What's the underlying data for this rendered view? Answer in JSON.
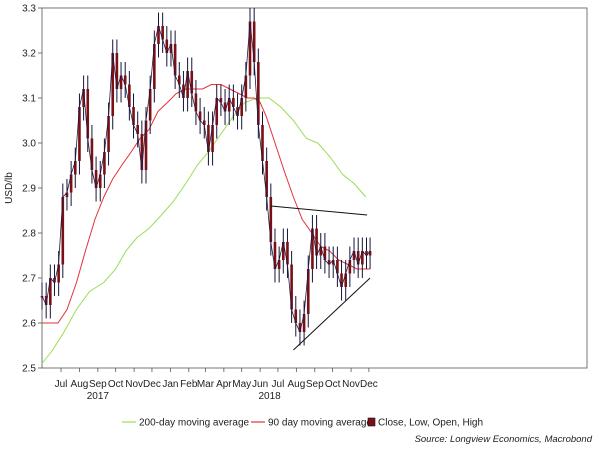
{
  "chart_data": {
    "type": "line",
    "ylabel": "USD/lb",
    "ylim": [
      2.5,
      3.3
    ],
    "yticks": [
      "2.5",
      "2.6",
      "2.7",
      "2.8",
      "2.9",
      "3.0",
      "3.1",
      "3.2",
      "3.3"
    ],
    "xlim": [
      "2016-06-13",
      "2018-12-17"
    ],
    "xticks": [
      {
        "label": "Jul",
        "date": "2016-07-15"
      },
      {
        "label": "Aug",
        "date": "2016-08-15"
      },
      {
        "label": "Sep",
        "date": "2016-09-15"
      },
      {
        "label": "Oct",
        "date": "2016-10-15"
      },
      {
        "label": "Nov",
        "date": "2016-11-15"
      },
      {
        "label": "Dec",
        "date": "2016-12-15"
      },
      {
        "label": "Jan",
        "date": "2017-01-15"
      },
      {
        "label": "Feb",
        "date": "2017-02-15"
      },
      {
        "label": "Mar",
        "date": "2017-03-15"
      },
      {
        "label": "Apr",
        "date": "2017-04-15"
      },
      {
        "label": "May",
        "date": "2017-05-15"
      },
      {
        "label": "Jun",
        "date": "2017-06-15"
      },
      {
        "label": "Jul",
        "date": "2017-07-15"
      },
      {
        "label": "Aug",
        "date": "2017-08-15"
      },
      {
        "label": "Sep",
        "date": "2017-09-15"
      },
      {
        "label": "Oct",
        "date": "2017-10-15"
      },
      {
        "label": "Nov",
        "date": "2017-11-15"
      },
      {
        "label": "Dec",
        "date": "2017-12-15"
      }
    ],
    "year_labels": [
      {
        "label": "2017",
        "date": "2016-09-15"
      },
      {
        "label": "2018",
        "date": "2017-07-01"
      }
    ],
    "series": [
      {
        "name": "200-day moving average",
        "color": "#99dd55",
        "points": [
          [
            "2016-06-13",
            2.51
          ],
          [
            "2016-07-01",
            2.54
          ],
          [
            "2016-07-20",
            2.58
          ],
          [
            "2016-08-10",
            2.63
          ],
          [
            "2016-09-01",
            2.67
          ],
          [
            "2016-09-25",
            2.69
          ],
          [
            "2016-10-15",
            2.72
          ],
          [
            "2016-11-01",
            2.76
          ],
          [
            "2016-11-20",
            2.79
          ],
          [
            "2016-12-10",
            2.81
          ],
          [
            "2016-12-31",
            2.84
          ],
          [
            "2017-01-20",
            2.87
          ],
          [
            "2017-02-10",
            2.91
          ],
          [
            "2017-03-01",
            2.95
          ],
          [
            "2017-03-20",
            2.98
          ],
          [
            "2017-04-10",
            3.02
          ],
          [
            "2017-05-01",
            3.06
          ],
          [
            "2017-05-20",
            3.09
          ],
          [
            "2017-06-10",
            3.1
          ],
          [
            "2017-06-30",
            3.1
          ],
          [
            "2017-07-20",
            3.08
          ],
          [
            "2017-08-10",
            3.05
          ],
          [
            "2017-09-01",
            3.01
          ],
          [
            "2017-09-20",
            3.0
          ],
          [
            "2017-10-10",
            2.97
          ],
          [
            "2017-11-01",
            2.93
          ],
          [
            "2017-11-20",
            2.91
          ],
          [
            "2017-12-10",
            2.88
          ]
        ]
      },
      {
        "name": "90 day moving average",
        "color": "#e2323a",
        "points": [
          [
            "2016-06-13",
            2.6
          ],
          [
            "2016-06-25",
            2.6
          ],
          [
            "2016-07-10",
            2.6
          ],
          [
            "2016-07-25",
            2.63
          ],
          [
            "2016-08-10",
            2.69
          ],
          [
            "2016-08-25",
            2.76
          ],
          [
            "2016-09-10",
            2.83
          ],
          [
            "2016-09-25",
            2.88
          ],
          [
            "2016-10-10",
            2.92
          ],
          [
            "2016-10-25",
            2.95
          ],
          [
            "2016-11-10",
            2.98
          ],
          [
            "2016-11-25",
            3.01
          ],
          [
            "2016-12-10",
            3.03
          ],
          [
            "2016-12-25",
            3.07
          ],
          [
            "2017-01-10",
            3.09
          ],
          [
            "2017-01-25",
            3.11
          ],
          [
            "2017-02-10",
            3.12
          ],
          [
            "2017-02-25",
            3.12
          ],
          [
            "2017-03-10",
            3.12
          ],
          [
            "2017-03-25",
            3.13
          ],
          [
            "2017-04-10",
            3.13
          ],
          [
            "2017-04-25",
            3.12
          ],
          [
            "2017-05-10",
            3.11
          ],
          [
            "2017-05-25",
            3.1
          ],
          [
            "2017-06-05",
            3.1
          ],
          [
            "2017-06-15",
            3.09
          ],
          [
            "2017-06-25",
            3.06
          ],
          [
            "2017-07-10",
            3.0
          ],
          [
            "2017-07-25",
            2.94
          ],
          [
            "2017-08-10",
            2.88
          ],
          [
            "2017-08-25",
            2.83
          ],
          [
            "2017-09-10",
            2.8
          ],
          [
            "2017-09-25",
            2.77
          ],
          [
            "2017-10-10",
            2.76
          ],
          [
            "2017-10-25",
            2.74
          ],
          [
            "2017-11-10",
            2.73
          ],
          [
            "2017-11-25",
            2.72
          ],
          [
            "2017-12-17",
            2.72
          ]
        ]
      },
      {
        "name": "Close, Low, Open, High",
        "color": "#7a0f14",
        "points": [
          [
            "2016-06-13",
            2.66
          ],
          [
            "2016-06-20",
            2.64
          ],
          [
            "2016-06-27",
            2.7
          ],
          [
            "2016-07-04",
            2.69
          ],
          [
            "2016-07-11",
            2.73
          ],
          [
            "2016-07-18",
            2.88
          ],
          [
            "2016-07-25",
            2.89
          ],
          [
            "2016-08-01",
            2.93
          ],
          [
            "2016-08-08",
            2.96
          ],
          [
            "2016-08-15",
            3.08
          ],
          [
            "2016-08-22",
            3.12
          ],
          [
            "2016-08-29",
            3.01
          ],
          [
            "2016-09-05",
            2.94
          ],
          [
            "2016-09-12",
            2.9
          ],
          [
            "2016-09-19",
            2.93
          ],
          [
            "2016-09-26",
            2.98
          ],
          [
            "2016-10-03",
            3.06
          ],
          [
            "2016-10-10",
            3.2
          ],
          [
            "2016-10-17",
            3.12
          ],
          [
            "2016-10-24",
            3.15
          ],
          [
            "2016-10-31",
            3.13
          ],
          [
            "2016-11-07",
            3.08
          ],
          [
            "2016-11-14",
            3.04
          ],
          [
            "2016-11-21",
            3.02
          ],
          [
            "2016-11-28",
            2.94
          ],
          [
            "2016-12-05",
            3.05
          ],
          [
            "2016-12-12",
            3.12
          ],
          [
            "2016-12-19",
            3.22
          ],
          [
            "2016-12-26",
            3.26
          ],
          [
            "2017-01-02",
            3.23
          ],
          [
            "2017-01-09",
            3.2
          ],
          [
            "2017-01-16",
            3.22
          ],
          [
            "2017-01-23",
            3.15
          ],
          [
            "2017-01-30",
            3.13
          ],
          [
            "2017-02-06",
            3.1
          ],
          [
            "2017-02-13",
            3.16
          ],
          [
            "2017-02-20",
            3.11
          ],
          [
            "2017-02-27",
            3.07
          ],
          [
            "2017-03-06",
            3.05
          ],
          [
            "2017-03-13",
            3.04
          ],
          [
            "2017-03-20",
            2.98
          ],
          [
            "2017-03-27",
            3.04
          ],
          [
            "2017-04-03",
            3.1
          ],
          [
            "2017-04-10",
            3.09
          ],
          [
            "2017-04-17",
            3.07
          ],
          [
            "2017-04-24",
            3.1
          ],
          [
            "2017-05-01",
            3.08
          ],
          [
            "2017-05-08",
            3.06
          ],
          [
            "2017-05-15",
            3.1
          ],
          [
            "2017-05-22",
            3.15
          ],
          [
            "2017-05-29",
            3.27
          ],
          [
            "2017-06-05",
            3.18
          ],
          [
            "2017-06-12",
            3.04
          ],
          [
            "2017-06-19",
            2.96
          ],
          [
            "2017-06-26",
            2.88
          ],
          [
            "2017-07-03",
            2.78
          ],
          [
            "2017-07-10",
            2.72
          ],
          [
            "2017-07-17",
            2.74
          ],
          [
            "2017-07-24",
            2.78
          ],
          [
            "2017-07-31",
            2.73
          ],
          [
            "2017-08-07",
            2.63
          ],
          [
            "2017-08-14",
            2.6
          ],
          [
            "2017-08-21",
            2.58
          ],
          [
            "2017-08-28",
            2.62
          ],
          [
            "2017-09-04",
            2.72
          ],
          [
            "2017-09-11",
            2.81
          ],
          [
            "2017-09-18",
            2.75
          ],
          [
            "2017-09-25",
            2.77
          ],
          [
            "2017-10-02",
            2.74
          ],
          [
            "2017-10-09",
            2.73
          ],
          [
            "2017-10-16",
            2.74
          ],
          [
            "2017-10-23",
            2.71
          ],
          [
            "2017-10-30",
            2.68
          ],
          [
            "2017-11-06",
            2.71
          ],
          [
            "2017-11-13",
            2.74
          ],
          [
            "2017-11-20",
            2.76
          ],
          [
            "2017-11-27",
            2.73
          ],
          [
            "2017-12-04",
            2.76
          ],
          [
            "2017-12-11",
            2.75
          ],
          [
            "2017-12-17",
            2.76
          ]
        ]
      }
    ],
    "trendlines": [
      {
        "name": "upper",
        "from": [
          "2017-07-03",
          2.86
        ],
        "to": [
          "2017-12-12",
          2.84
        ]
      },
      {
        "name": "lower",
        "from": [
          "2017-08-10",
          2.54
        ],
        "to": [
          "2017-12-17",
          2.7
        ]
      }
    ],
    "legend_position": "bottom",
    "grid": false,
    "source": "Source: Longview Economics, Macrobond"
  }
}
